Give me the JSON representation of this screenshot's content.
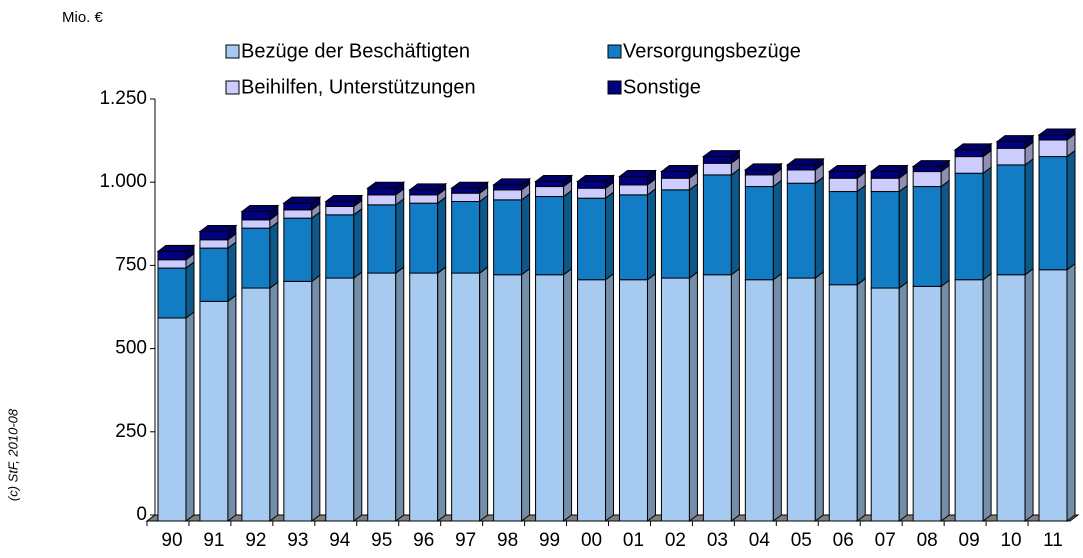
{
  "chart_data": {
    "type": "bar",
    "stacked": true,
    "y_label": "Mio. €",
    "note": "(c) StF, 2010-08",
    "categories": [
      "90",
      "91",
      "92",
      "93",
      "94",
      "95",
      "96",
      "97",
      "98",
      "99",
      "00",
      "01",
      "02",
      "03",
      "04",
      "05",
      "06",
      "07",
      "08",
      "09",
      "10",
      "11"
    ],
    "series": [
      {
        "name": "Bezüge der Beschäftigten",
        "color": "#a6caf0",
        "values": [
          610,
          660,
          700,
          720,
          730,
          745,
          745,
          745,
          740,
          740,
          725,
          725,
          730,
          740,
          725,
          730,
          710,
          700,
          705,
          725,
          740,
          755
        ]
      },
      {
        "name": "Versorgungsbezüge",
        "color": "#127dc4",
        "values": [
          150,
          160,
          180,
          190,
          190,
          205,
          210,
          215,
          225,
          235,
          245,
          255,
          265,
          300,
          280,
          285,
          280,
          290,
          300,
          320,
          330,
          340
        ]
      },
      {
        "name": "Beihilfen, Unterstützungen",
        "color": "#ccccff",
        "values": [
          25,
          25,
          25,
          25,
          25,
          30,
          25,
          25,
          30,
          30,
          30,
          30,
          35,
          35,
          35,
          40,
          40,
          40,
          45,
          50,
          50,
          50
        ]
      },
      {
        "name": "Sonstige",
        "color": "#000080",
        "values": [
          25,
          25,
          25,
          20,
          15,
          20,
          15,
          15,
          15,
          15,
          20,
          25,
          20,
          20,
          15,
          15,
          20,
          20,
          15,
          20,
          20,
          15
        ]
      }
    ],
    "ylim": [
      0,
      1250
    ],
    "yticks": [
      0,
      250,
      500,
      750,
      {
        "value": 1000,
        "label": "1.000"
      },
      {
        "value": 1250,
        "label": "1.250"
      }
    ],
    "grid": false
  }
}
